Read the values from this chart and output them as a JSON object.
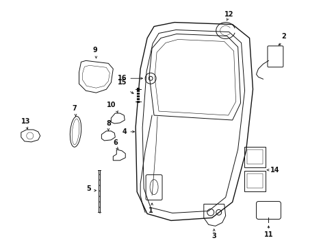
{
  "background_color": "#ffffff",
  "figsize": [
    4.89,
    3.6
  ],
  "dpi": 100,
  "color": "#111111"
}
